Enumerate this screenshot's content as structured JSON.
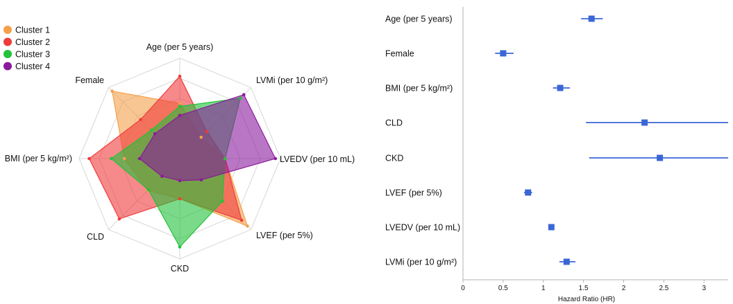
{
  "radar": {
    "type": "radar",
    "axes": [
      "Age (per 5 years)",
      "LVMi (per 10 g/m²)",
      "LVEDV (per 10 mL)",
      "LVEF (per 5%)",
      "CKD",
      "CLD",
      "BMI (per 5 kg/m²)",
      "Female"
    ],
    "legend": [
      "Cluster 1",
      "Cluster 2",
      "Cluster 3",
      "Cluster 4"
    ],
    "range": [
      0,
      1
    ],
    "series": [
      {
        "name": "Cluster 1",
        "color": "#f4a04a",
        "values": [
          0.55,
          0.3,
          0.45,
          0.95,
          0.4,
          0.45,
          0.55,
          0.95
        ]
      },
      {
        "name": "Cluster 2",
        "color": "#f03b3b",
        "values": [
          0.82,
          0.38,
          0.45,
          0.87,
          0.4,
          0.85,
          0.9,
          0.55
        ]
      },
      {
        "name": "Cluster 3",
        "color": "#22c23a",
        "values": [
          0.52,
          0.85,
          0.45,
          0.6,
          0.88,
          0.44,
          0.68,
          0.4
        ]
      },
      {
        "name": "Cluster 4",
        "color": "#8b1a9c",
        "values": [
          0.43,
          0.9,
          0.95,
          0.3,
          0.22,
          0.25,
          0.4,
          0.35
        ]
      }
    ]
  },
  "forest": {
    "type": "forest",
    "xlabel": "Hazard Ratio (HR)",
    "xlim": [
      0,
      3.3
    ],
    "ticks": [
      "0",
      "0.5",
      "1",
      "1.5",
      "2",
      "2.5",
      "3"
    ],
    "tick_values": [
      0,
      0.5,
      1,
      1.5,
      2,
      2.5,
      3
    ],
    "color": "#3a66d6",
    "rows": [
      {
        "label": "Age (per 5 years)",
        "hr": 1.6,
        "lo": 1.47,
        "hi": 1.74
      },
      {
        "label": "Female",
        "hr": 0.5,
        "lo": 0.4,
        "hi": 0.63
      },
      {
        "label": "BMI (per 5 kg/m²)",
        "hr": 1.21,
        "lo": 1.12,
        "hi": 1.33
      },
      {
        "label": "CLD",
        "hr": 2.26,
        "lo": 1.53,
        "hi": 3.32
      },
      {
        "label": "CKD",
        "hr": 2.45,
        "lo": 1.57,
        "hi": 3.33
      },
      {
        "label": "LVEF (per 5%)",
        "hr": 0.81,
        "lo": 0.76,
        "hi": 0.86
      },
      {
        "label": "LVEDV (per 10 mL)",
        "hr": 1.1,
        "lo": 1.08,
        "hi": 1.12
      },
      {
        "label": "LVMi (per 10 g/m²)",
        "hr": 1.29,
        "lo": 1.2,
        "hi": 1.4
      }
    ]
  }
}
